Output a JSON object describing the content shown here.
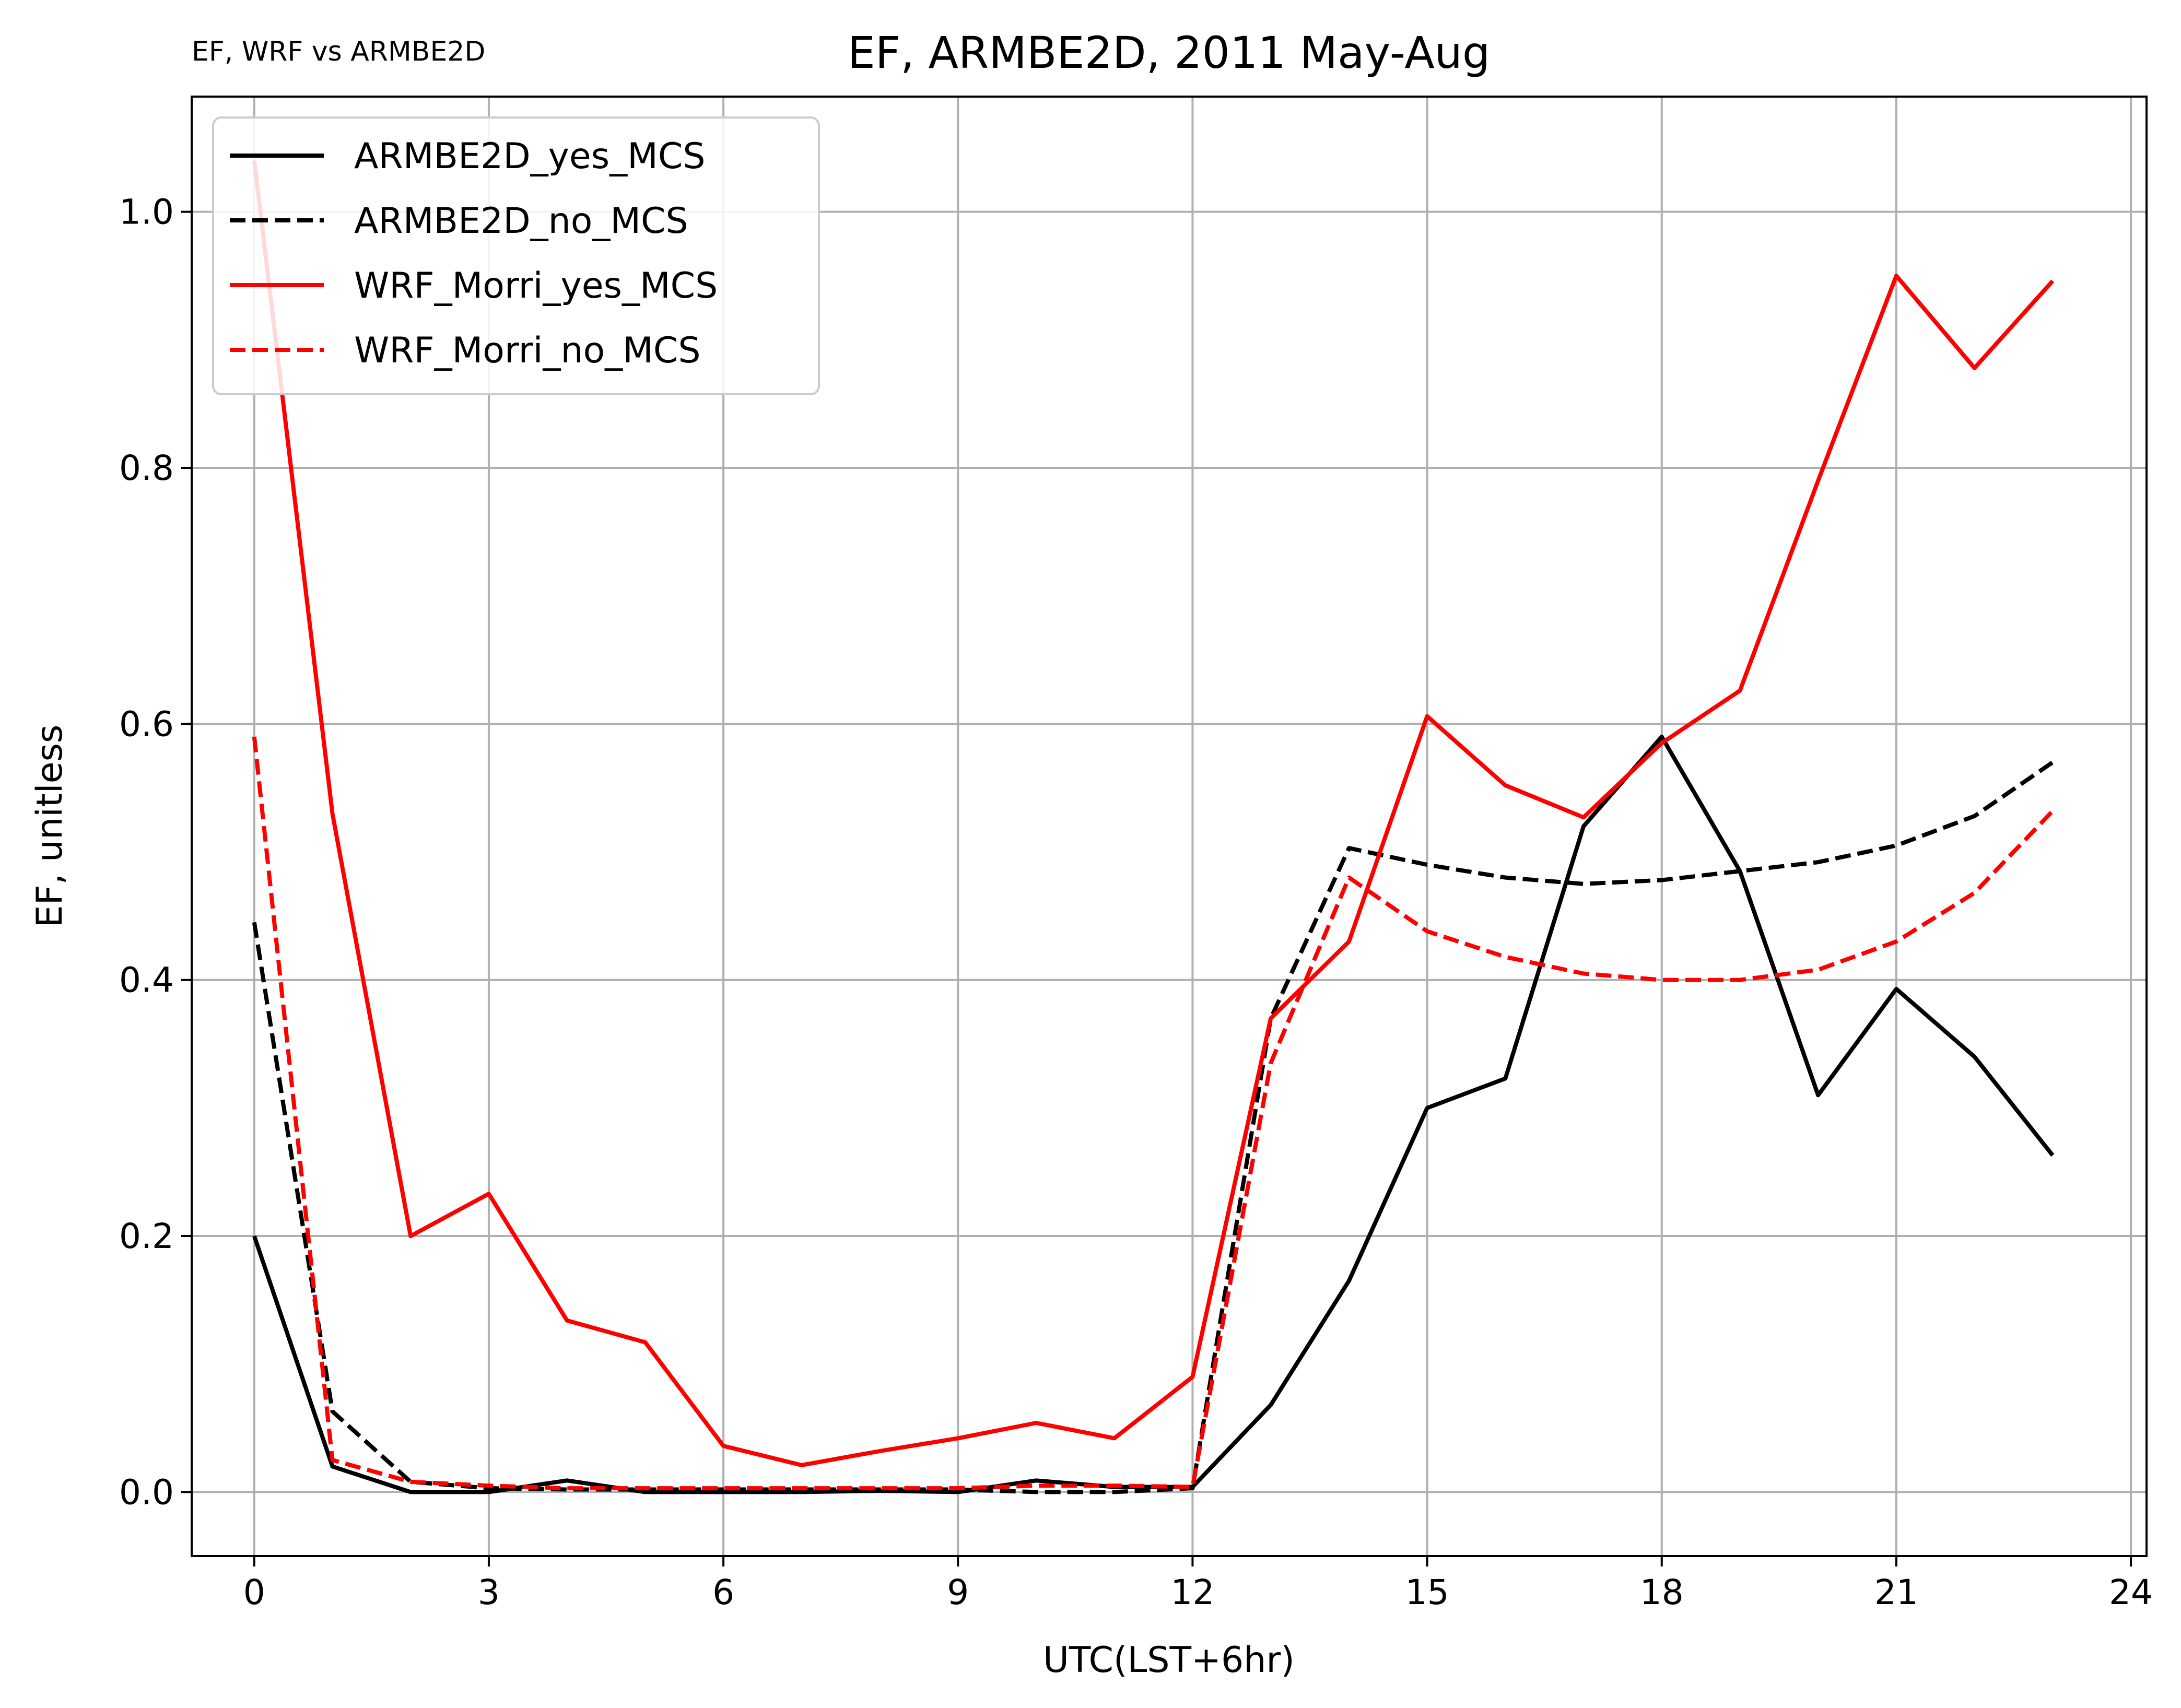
{
  "chart_data": {
    "type": "line",
    "title": "EF, ARMBE2D, 2011 May-Aug",
    "subtitle": "EF, WRF vs ARMBE2D",
    "xlabel": "UTC(LST+6hr)",
    "ylabel": "EF, unitless",
    "xlim": [
      -0.8,
      24.2
    ],
    "ylim": [
      -0.05,
      1.09
    ],
    "xticks": [
      0,
      3,
      6,
      9,
      12,
      15,
      18,
      21,
      24
    ],
    "yticks": [
      0.0,
      0.2,
      0.4,
      0.6,
      0.8,
      1.0
    ],
    "xtick_labels": [
      "0",
      "3",
      "6",
      "9",
      "12",
      "15",
      "18",
      "21",
      "24"
    ],
    "ytick_labels": [
      "0.0",
      "0.2",
      "0.4",
      "0.6",
      "0.8",
      "1.0"
    ],
    "grid": true,
    "legend_position": "upper-left",
    "x": [
      0,
      1,
      2,
      3,
      4,
      5,
      6,
      7,
      8,
      9,
      10,
      11,
      12,
      13,
      14,
      15,
      16,
      17,
      18,
      19,
      20,
      21,
      22,
      23
    ],
    "series": [
      {
        "name": "ARMBE2D_yes_MCS",
        "color": "#000000",
        "dash": "solid",
        "values": [
          0.2,
          0.02,
          0.0,
          0.0,
          0.009,
          0.0,
          0.0,
          0.0,
          0.001,
          0.0,
          0.009,
          0.004,
          0.004,
          0.068,
          0.165,
          0.3,
          0.323,
          0.52,
          0.59,
          0.485,
          0.31,
          0.393,
          0.34,
          0.263
        ]
      },
      {
        "name": "ARMBE2D_no_MCS",
        "color": "#000000",
        "dash": "dashed",
        "values": [
          0.445,
          0.063,
          0.008,
          0.003,
          0.002,
          0.002,
          0.002,
          0.002,
          0.002,
          0.002,
          0.0,
          0.0,
          0.003,
          0.37,
          0.503,
          0.49,
          0.48,
          0.475,
          0.478,
          0.485,
          0.492,
          0.505,
          0.528,
          0.57
        ]
      },
      {
        "name": "WRF_Morri_yes_MCS",
        "color": "#ff0000",
        "dash": "solid",
        "values": [
          1.04,
          0.53,
          0.2,
          0.233,
          0.134,
          0.117,
          0.036,
          0.021,
          0.032,
          0.042,
          0.054,
          0.042,
          0.09,
          0.37,
          0.43,
          0.606,
          0.552,
          0.527,
          0.585,
          0.626,
          0.79,
          0.95,
          0.878,
          0.946
        ]
      },
      {
        "name": "WRF_Morri_no_MCS",
        "color": "#ff0000",
        "dash": "dashed",
        "values": [
          0.59,
          0.025,
          0.008,
          0.005,
          0.003,
          0.003,
          0.003,
          0.003,
          0.003,
          0.003,
          0.005,
          0.005,
          0.004,
          0.335,
          0.48,
          0.438,
          0.418,
          0.405,
          0.4,
          0.4,
          0.408,
          0.43,
          0.468,
          0.532
        ]
      }
    ]
  }
}
